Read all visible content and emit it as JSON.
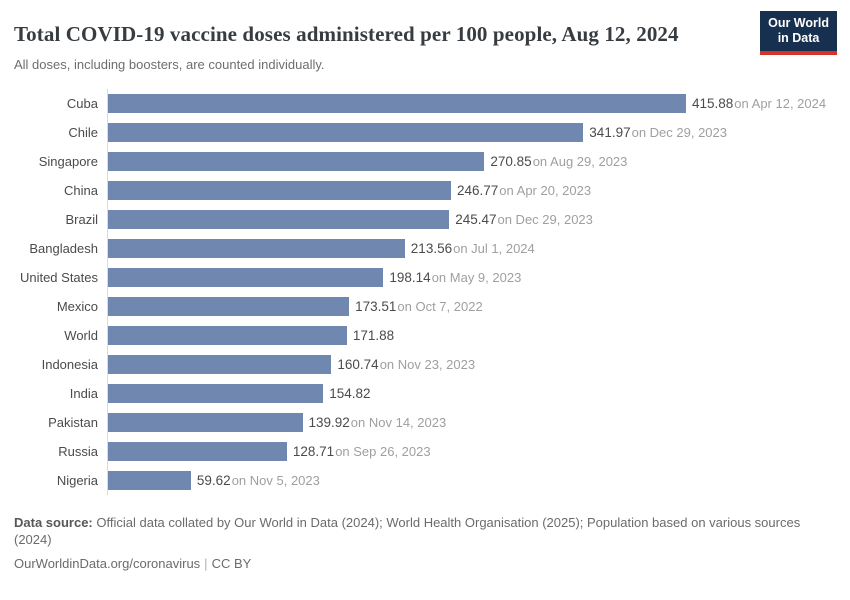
{
  "header": {
    "title": "Total COVID-19 vaccine doses administered per 100 people, Aug 12, 2024",
    "subtitle": "All doses, including boosters, are counted individually.",
    "logo": {
      "line1": "Our World",
      "line2": "in Data"
    }
  },
  "chart_data": {
    "type": "bar",
    "orientation": "horizontal",
    "title": "Total COVID-19 vaccine doses administered per 100 people, Aug 12, 2024",
    "xlim": [
      0,
      415.88
    ],
    "grid": false,
    "legend": "none",
    "bar_color": "#7088b0",
    "rows": [
      {
        "entity": "Cuba",
        "value": 415.88,
        "value_label": "415.88",
        "date_label": "on Apr 12, 2024"
      },
      {
        "entity": "Chile",
        "value": 341.97,
        "value_label": "341.97",
        "date_label": "on Dec 29, 2023"
      },
      {
        "entity": "Singapore",
        "value": 270.85,
        "value_label": "270.85",
        "date_label": "on Aug 29, 2023"
      },
      {
        "entity": "China",
        "value": 246.77,
        "value_label": "246.77",
        "date_label": "on Apr 20, 2023"
      },
      {
        "entity": "Brazil",
        "value": 245.47,
        "value_label": "245.47",
        "date_label": "on Dec 29, 2023"
      },
      {
        "entity": "Bangladesh",
        "value": 213.56,
        "value_label": "213.56",
        "date_label": "on Jul 1, 2024"
      },
      {
        "entity": "United States",
        "value": 198.14,
        "value_label": "198.14",
        "date_label": "on May 9, 2023"
      },
      {
        "entity": "Mexico",
        "value": 173.51,
        "value_label": "173.51",
        "date_label": "on Oct 7, 2022"
      },
      {
        "entity": "World",
        "value": 171.88,
        "value_label": "171.88",
        "date_label": ""
      },
      {
        "entity": "Indonesia",
        "value": 160.74,
        "value_label": "160.74",
        "date_label": "on Nov 23, 2023"
      },
      {
        "entity": "India",
        "value": 154.82,
        "value_label": "154.82",
        "date_label": ""
      },
      {
        "entity": "Pakistan",
        "value": 139.92,
        "value_label": "139.92",
        "date_label": "on Nov 14, 2023"
      },
      {
        "entity": "Russia",
        "value": 128.71,
        "value_label": "128.71",
        "date_label": "on Sep 26, 2023"
      },
      {
        "entity": "Nigeria",
        "value": 59.62,
        "value_label": "59.62",
        "date_label": "on Nov 5, 2023"
      }
    ]
  },
  "footer": {
    "source_label": "Data source:",
    "source_text": "Official data collated by Our World in Data (2024); World Health Organisation (2025); Population based on various sources (2024)",
    "link": "OurWorldinData.org/coronavirus",
    "separator": "|",
    "license": "CC BY"
  }
}
